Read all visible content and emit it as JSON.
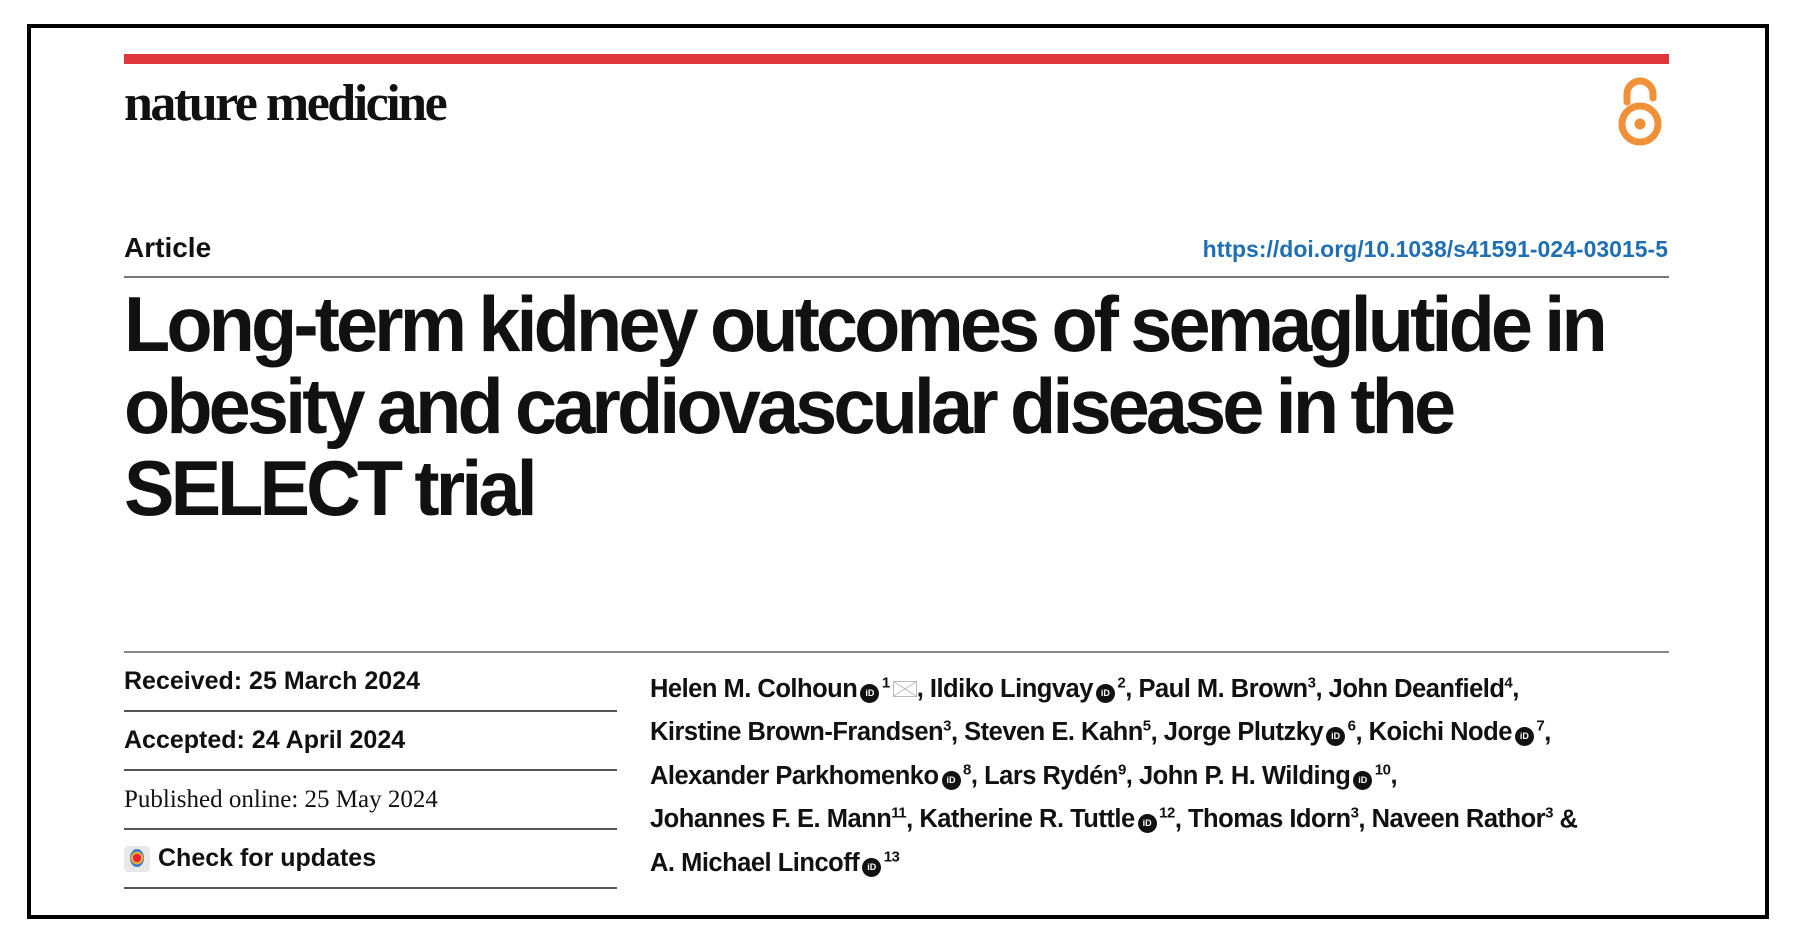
{
  "journal": "nature medicine",
  "article_type": "Article",
  "doi": "https://doi.org/10.1038/s41591-024-03015-5",
  "title": "Long-term kidney outcomes of semaglutide in obesity and cardiovascular disease in the SELECT trial",
  "dates": {
    "received": "Received: 25 March 2024",
    "accepted": "Accepted: 24 April 2024",
    "published": "Published online: 25 May 2024",
    "check_updates": "Check for updates"
  },
  "authors": [
    {
      "name": "Helen M. Colhoun",
      "orcid": true,
      "aff": "1",
      "email": true
    },
    {
      "name": "Ildiko Lingvay",
      "orcid": true,
      "aff": "2"
    },
    {
      "name": "Paul M. Brown",
      "orcid": false,
      "aff": "3"
    },
    {
      "name": "John Deanfield",
      "orcid": false,
      "aff": "4"
    },
    {
      "name": "Kirstine Brown-Frandsen",
      "orcid": false,
      "aff": "3"
    },
    {
      "name": "Steven E. Kahn",
      "orcid": false,
      "aff": "5"
    },
    {
      "name": "Jorge Plutzky",
      "orcid": true,
      "aff": "6"
    },
    {
      "name": "Koichi Node",
      "orcid": true,
      "aff": "7"
    },
    {
      "name": "Alexander Parkhomenko",
      "orcid": true,
      "aff": "8"
    },
    {
      "name": "Lars Rydén",
      "orcid": false,
      "aff": "9"
    },
    {
      "name": "John P. H. Wilding",
      "orcid": true,
      "aff": "10"
    },
    {
      "name": "Johannes F. E. Mann",
      "orcid": false,
      "aff": "11"
    },
    {
      "name": "Katherine R. Tuttle",
      "orcid": true,
      "aff": "12"
    },
    {
      "name": "Thomas Idorn",
      "orcid": false,
      "aff": "3"
    },
    {
      "name": "Naveen Rathor",
      "orcid": false,
      "aff": "3"
    },
    {
      "name": "A. Michael Lincoff",
      "orcid": true,
      "aff": "13"
    }
  ],
  "orcid_label": "iD",
  "colors": {
    "brand_red": "#e0363d",
    "link_blue": "#1f6fb2",
    "open_access_orange": "#f0913a"
  }
}
